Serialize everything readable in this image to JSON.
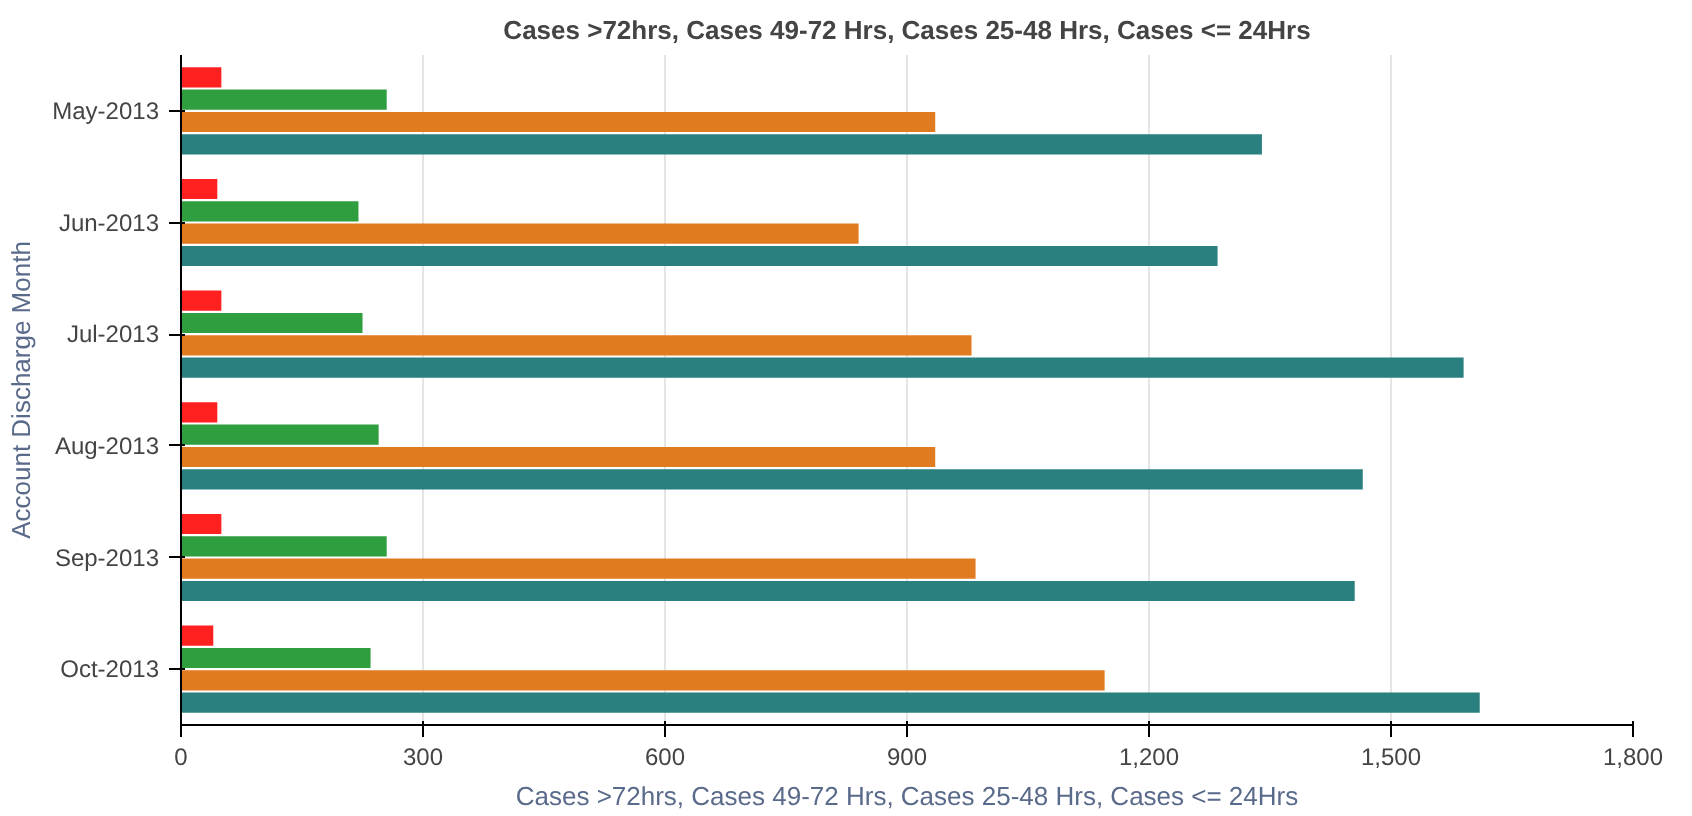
{
  "chart_data": {
    "type": "bar",
    "orientation": "horizontal",
    "title": "Cases >72hrs, Cases 49-72 Hrs, Cases 25-48 Hrs, Cases <= 24Hrs",
    "xlabel": "Cases >72hrs, Cases 49-72 Hrs, Cases 25-48 Hrs, Cases <= 24Hrs",
    "ylabel": "Account Discharge Month",
    "categories": [
      "May-2013",
      "Jun-2013",
      "Jul-2013",
      "Aug-2013",
      "Sep-2013",
      "Oct-2013"
    ],
    "series": [
      {
        "color": "#ff2020",
        "values": [
          50,
          45,
          50,
          45,
          50,
          40
        ]
      },
      {
        "color": "#2e9e3e",
        "values": [
          255,
          220,
          225,
          245,
          255,
          235
        ]
      },
      {
        "color": "#e07b20",
        "values": [
          935,
          840,
          980,
          935,
          985,
          1145
        ]
      },
      {
        "color": "#2a7f7f",
        "values": [
          1340,
          1285,
          1590,
          1465,
          1455,
          1610
        ]
      }
    ],
    "xlim": [
      0,
      1800
    ],
    "xticks": [
      0,
      {
        "value": 300,
        "label": "300"
      },
      {
        "value": 600,
        "label": "600"
      },
      {
        "value": 900,
        "label": "900"
      },
      {
        "value": 1200,
        "label": "1,200"
      },
      {
        "value": 1500,
        "label": "1,500"
      },
      {
        "value": 1800,
        "label": "1,800"
      }
    ],
    "grid": "x"
  }
}
